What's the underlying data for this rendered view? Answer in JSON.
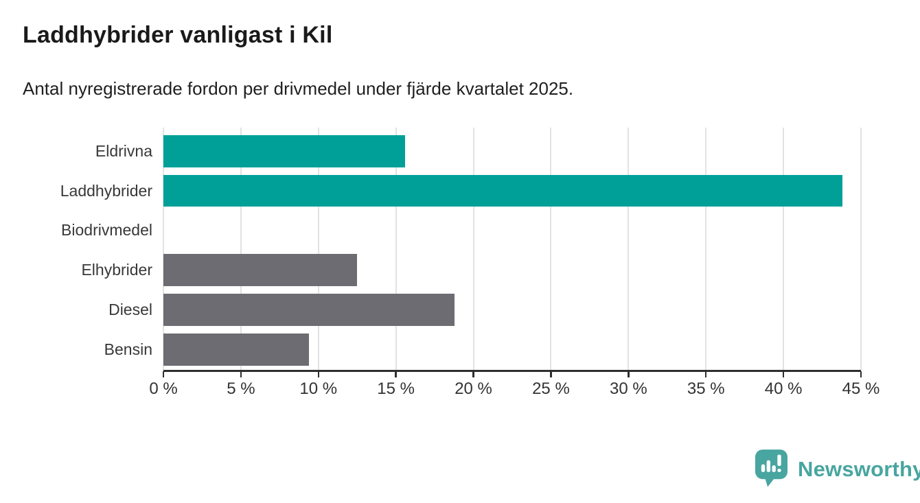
{
  "header": {
    "title": "Laddhybrider vanligast i Kil",
    "subtitle": "Antal nyregistrerade fordon per drivmedel under fjärde kvartalet 2025."
  },
  "branding": {
    "logo_text": "Newsworthy",
    "logo_color": "#48a5a0"
  },
  "colors": {
    "highlight_bar": "#00a099",
    "default_bar": "#6c6c72",
    "gridline": "#e2e2e2",
    "axis": "#2e2e2e"
  },
  "chart_data": {
    "type": "bar",
    "orientation": "horizontal",
    "title": "Laddhybrider vanligast i Kil",
    "subtitle": "Antal nyregistrerade fordon per drivmedel under fjärde kvartalet 2025.",
    "categories": [
      "Eldrivna",
      "Laddhybrider",
      "Biodrivmedel",
      "Elhybrider",
      "Diesel",
      "Bensin"
    ],
    "values": [
      15.6,
      43.8,
      0,
      12.5,
      18.8,
      9.4
    ],
    "bar_colors": [
      "#00a099",
      "#00a099",
      "#6c6c72",
      "#6c6c72",
      "#6c6c72",
      "#6c6c72"
    ],
    "unit": "%",
    "xlim": [
      0,
      45
    ],
    "x_tick_values": [
      0,
      5,
      10,
      15,
      20,
      25,
      30,
      35,
      40,
      45
    ],
    "x_tick_labels": [
      "0 %",
      "5 %",
      "10 %",
      "15 %",
      "20 %",
      "25 %",
      "30 %",
      "35 %",
      "40 %",
      "45 %"
    ],
    "grid": "vertical",
    "legend": "none"
  }
}
